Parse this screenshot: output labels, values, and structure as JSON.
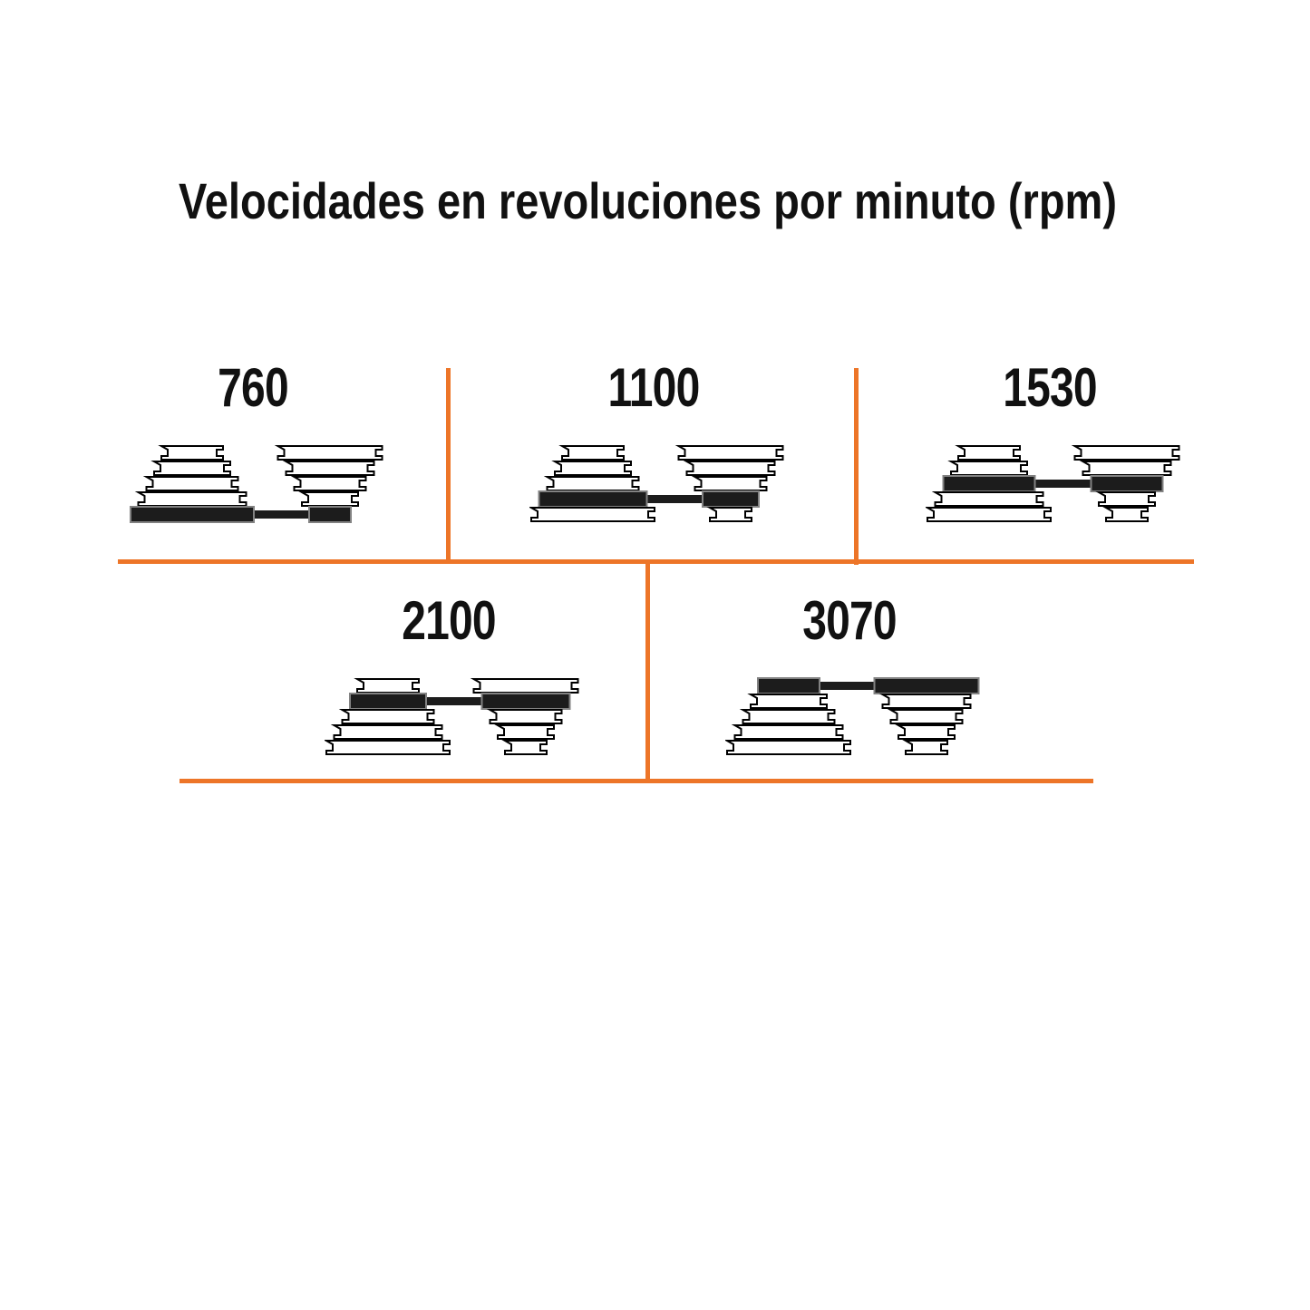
{
  "title": "Velocidades en revoluciones por minuto (rpm)",
  "accent_color": "#ED7528",
  "text_color": "#111111",
  "belt_color": "#1C1C1C",
  "belt_edge_color": "#828282",
  "step_outline_color": "#000000",
  "diagrams": [
    {
      "label": "760",
      "rpm": 760,
      "belt_step": 5,
      "row": 1
    },
    {
      "label": "1100",
      "rpm": 1100,
      "belt_step": 4,
      "row": 1
    },
    {
      "label": "1530",
      "rpm": 1530,
      "belt_step": 3,
      "row": 1
    },
    {
      "label": "2100",
      "rpm": 2100,
      "belt_step": 2,
      "row": 2
    },
    {
      "label": "3070",
      "rpm": 3070,
      "belt_step": 1,
      "row": 2
    }
  ],
  "pulley": {
    "steps_per_cone": 5,
    "driver_step_widths": [
      68,
      84,
      101,
      119,
      136
    ],
    "driven_step_widths": [
      115,
      97,
      79,
      62,
      46
    ]
  }
}
